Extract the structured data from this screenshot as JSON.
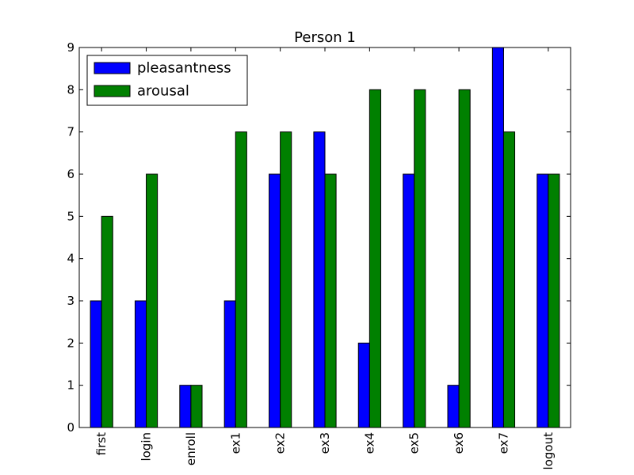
{
  "chart_data": {
    "type": "bar",
    "title": "Person 1",
    "xlabel": "",
    "ylabel": "",
    "categories": [
      "first",
      "login",
      "enroll",
      "ex1",
      "ex2",
      "ex3",
      "ex4",
      "ex5",
      "ex6",
      "ex7",
      "logout"
    ],
    "series": [
      {
        "name": "pleasantness",
        "color": "#0000ff",
        "values": [
          3,
          3,
          1,
          3,
          6,
          7,
          2,
          6,
          1,
          9,
          6
        ]
      },
      {
        "name": "arousal",
        "color": "#008000",
        "values": [
          5,
          6,
          1,
          7,
          7,
          6,
          8,
          8,
          8,
          7,
          6
        ]
      }
    ],
    "ylim": [
      0,
      9
    ],
    "yticks": [
      0,
      1,
      2,
      3,
      4,
      5,
      6,
      7,
      8,
      9
    ],
    "grid": false,
    "legend": "upper-left",
    "xtick_rotation": "vertical"
  }
}
